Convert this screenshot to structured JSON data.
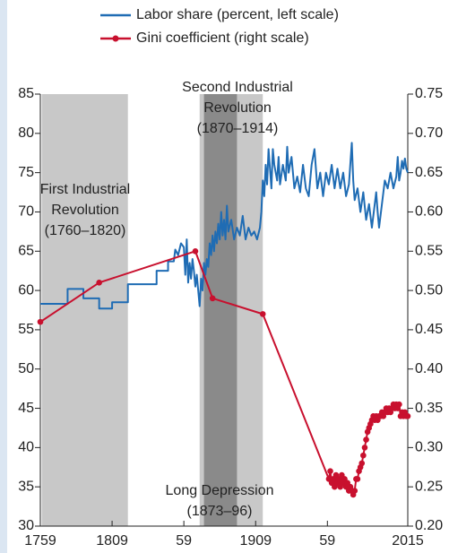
{
  "chart_data": {
    "type": "line",
    "xlim": [
      1759,
      2015
    ],
    "xticks": [
      1759,
      1809,
      {
        "value": 1859,
        "label": "59"
      },
      1909,
      {
        "value": 1959,
        "label": "59"
      },
      2015
    ],
    "ylim": [
      30,
      85
    ],
    "yticks": [
      30,
      35,
      40,
      45,
      50,
      55,
      60,
      65,
      70,
      75,
      80,
      85
    ],
    "y2lim": [
      0.2,
      0.75
    ],
    "y2ticks": [
      {
        "value": 0.2,
        "label": "0.20"
      },
      0.25,
      {
        "value": 0.3,
        "label": "0.30"
      },
      0.35,
      {
        "value": 0.4,
        "label": "0.40"
      },
      0.45,
      {
        "value": 0.5,
        "label": "0.50"
      },
      0.55,
      {
        "value": 0.6,
        "label": "0.60"
      },
      0.65,
      {
        "value": 0.7,
        "label": "0.70"
      },
      0.75
    ],
    "regions": [
      {
        "start": 1760,
        "end": 1820,
        "color": "#c8c8c8",
        "label": [
          "First Industrial",
          "Revolution",
          "(1760–1820)"
        ]
      },
      {
        "start": 1870,
        "end": 1914,
        "color": "#c8c8c8",
        "label": [
          "Second Industrial",
          "Revolution",
          "(1870–1914)"
        ]
      },
      {
        "start": 1873,
        "end": 1896,
        "color": "#8a8a8a",
        "label": [
          "Long Depression",
          "(1873–96)"
        ]
      }
    ],
    "series": [
      {
        "name": "Labor share (percent, left scale)",
        "color": "#1f6cb4",
        "axis": "y",
        "x": [
          1759,
          1778,
          1778,
          1789,
          1789,
          1800,
          1800,
          1809,
          1809,
          1820,
          1820,
          1840,
          1840,
          1848,
          1848,
          1852,
          1853,
          1855,
          1857,
          1859,
          1860,
          1861,
          1862,
          1863,
          1864,
          1865,
          1866,
          1867,
          1868,
          1869,
          1870,
          1871,
          1872,
          1873,
          1874,
          1875,
          1876,
          1877,
          1878,
          1879,
          1880,
          1881,
          1882,
          1883,
          1884,
          1885,
          1886,
          1887,
          1888,
          1889,
          1890,
          1892,
          1894,
          1896,
          1898,
          1900,
          1902,
          1904,
          1906,
          1908,
          1910,
          1912,
          1913,
          1914,
          1915,
          1916,
          1917,
          1918,
          1920,
          1921,
          1922,
          1924,
          1925,
          1926,
          1928,
          1930,
          1931,
          1932,
          1934,
          1936,
          1938,
          1940,
          1942,
          1944,
          1946,
          1948,
          1950,
          1952,
          1954,
          1956,
          1958,
          1960,
          1962,
          1964,
          1966,
          1968,
          1970,
          1972,
          1974,
          1976,
          1977,
          1978,
          1980,
          1982,
          1984,
          1986,
          1988,
          1990,
          1992,
          1993,
          1994,
          1995,
          1997,
          1999,
          2001,
          2003,
          2005,
          2007,
          2008,
          2009,
          2010,
          2011,
          2012,
          2013,
          2014,
          2015
        ],
        "values": [
          58.3,
          58.3,
          60.2,
          60.2,
          59,
          59,
          57.7,
          57.7,
          58.5,
          58.5,
          60.8,
          60.8,
          62.5,
          62.5,
          63.7,
          63.7,
          65.2,
          64.5,
          66,
          65.5,
          62,
          66.5,
          61,
          63.5,
          61.5,
          64,
          62.5,
          60.5,
          62,
          60,
          58,
          61.5,
          60,
          63.5,
          62,
          64,
          63,
          66,
          64.5,
          67,
          65,
          67.5,
          66,
          68.5,
          66.5,
          70,
          67,
          69,
          66.5,
          70.8,
          67.5,
          69,
          66.5,
          68,
          67,
          69.5,
          66.5,
          68,
          67,
          67.5,
          66.5,
          68,
          70,
          74,
          72,
          76,
          73.5,
          78,
          73,
          78,
          76,
          74,
          77,
          73.5,
          76,
          74,
          78.3,
          75,
          77,
          73,
          74.5,
          72.5,
          76,
          73,
          72,
          76,
          78,
          73,
          75,
          72,
          75,
          73.5,
          76,
          73,
          75.5,
          73,
          75,
          72,
          73.5,
          78.8,
          74,
          71.5,
          73,
          70,
          72.5,
          69,
          71,
          68,
          71,
          72.5,
          70,
          68,
          71,
          74,
          73,
          75,
          73,
          74.5,
          77,
          74,
          75,
          76.5,
          75.5,
          76.8,
          75.5,
          75
        ]
      },
      {
        "name": "Gini coefficient (right scale)",
        "color": "#c8102e",
        "axis": "y2",
        "marker": "circle",
        "x": [
          1759,
          1800,
          1867,
          1879,
          1914,
          1960,
          1961,
          1962,
          1963,
          1964,
          1965,
          1966,
          1967,
          1968,
          1969,
          1970,
          1971,
          1972,
          1973,
          1974,
          1975,
          1976,
          1977,
          1978,
          1979,
          1980,
          1981,
          1982,
          1983,
          1984,
          1985,
          1986,
          1987,
          1988,
          1989,
          1990,
          1991,
          1992,
          1993,
          1994,
          1995,
          1996,
          1997,
          1998,
          1999,
          2000,
          2001,
          2002,
          2003,
          2004,
          2005,
          2006,
          2007,
          2008,
          2009,
          2010,
          2011,
          2012,
          2013,
          2014,
          2015
        ],
        "values": [
          0.46,
          0.51,
          0.55,
          0.49,
          0.47,
          0.26,
          0.27,
          0.255,
          0.26,
          0.25,
          0.265,
          0.255,
          0.26,
          0.25,
          0.265,
          0.255,
          0.26,
          0.25,
          0.255,
          0.245,
          0.25,
          0.245,
          0.24,
          0.245,
          0.26,
          0.26,
          0.27,
          0.275,
          0.28,
          0.29,
          0.3,
          0.31,
          0.32,
          0.325,
          0.33,
          0.335,
          0.34,
          0.335,
          0.34,
          0.335,
          0.34,
          0.34,
          0.345,
          0.34,
          0.345,
          0.35,
          0.345,
          0.35,
          0.345,
          0.35,
          0.355,
          0.35,
          0.355,
          0.35,
          0.355,
          0.34,
          0.345,
          0.34,
          0.345,
          0.34,
          0.34
        ]
      }
    ]
  }
}
